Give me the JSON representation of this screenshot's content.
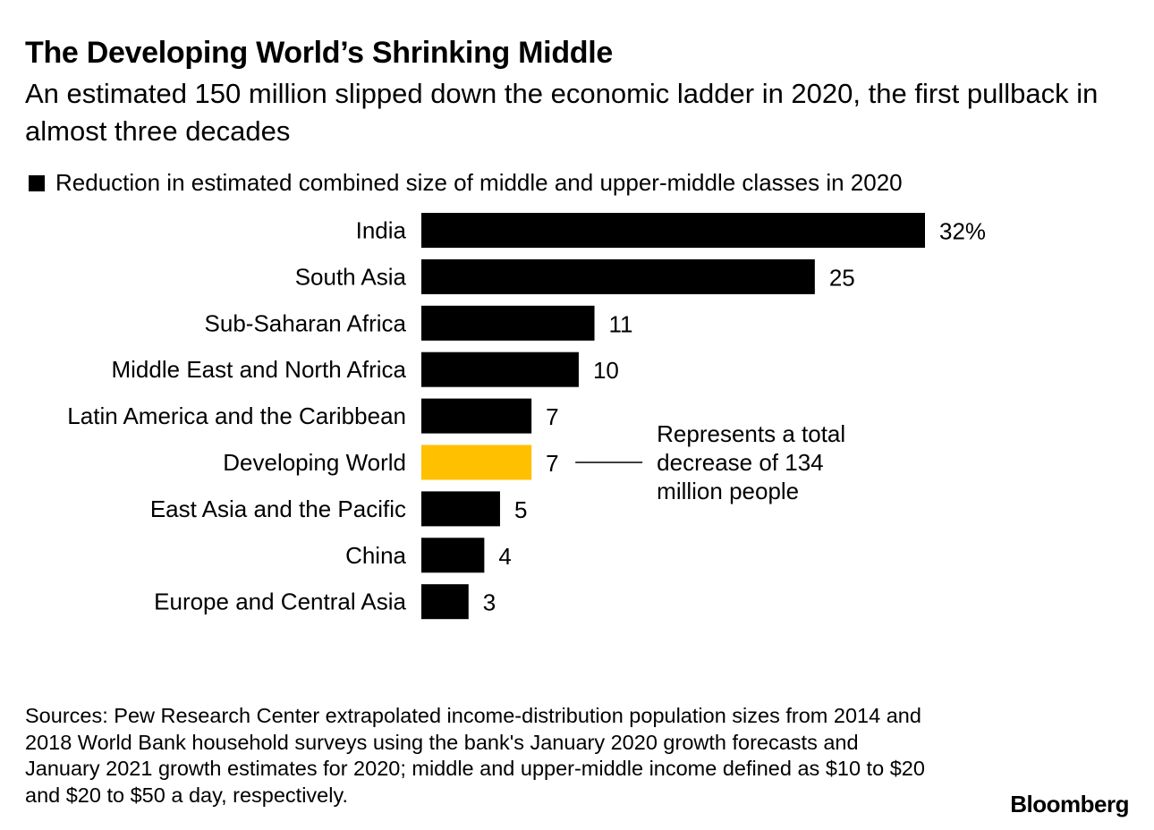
{
  "header": {
    "title": "The Developing World’s Shrinking Middle",
    "subtitle": "An estimated 150 million slipped down the economic ladder in 2020, the first pullback in almost three decades"
  },
  "legend": {
    "label": "Reduction in estimated combined size of middle and upper-middle classes in 2020"
  },
  "chart_data": {
    "type": "bar",
    "orientation": "horizontal",
    "categories": [
      "India",
      "South Asia",
      "Sub-Saharan Africa",
      "Middle East and North Africa",
      "Latin America and the Caribbean",
      "Developing World",
      "East Asia and the Pacific",
      "China",
      "Europe and Central Asia"
    ],
    "series": [
      {
        "name": "Reduction in estimated combined size of middle and upper-middle classes in 2020",
        "values": [
          32,
          25,
          11,
          10,
          7,
          7,
          5,
          4,
          3
        ]
      }
    ],
    "value_labels": [
      "32%",
      "25",
      "11",
      "10",
      "7",
      "7",
      "5",
      "4",
      "3"
    ],
    "highlight_category": "Developing World",
    "colors": {
      "bar": "#000000",
      "highlight": "#FFC000"
    },
    "xlim": [
      0,
      32
    ],
    "grid": false,
    "legend_position": "top-left",
    "annotation": {
      "target": "Developing World",
      "lines": [
        "Represents a total",
        "decrease of 134",
        "million people"
      ]
    }
  },
  "footer": {
    "source": "Sources: Pew Research Center extrapolated income-distribution population sizes from 2014 and 2018 World Bank household surveys using the bank's January 2020 growth forecasts and January 2021 growth estimates for 2020; middle and upper-middle income defined as $10 to $20 and $20 to $50 a day, respectively.",
    "brand": "Bloomberg"
  }
}
